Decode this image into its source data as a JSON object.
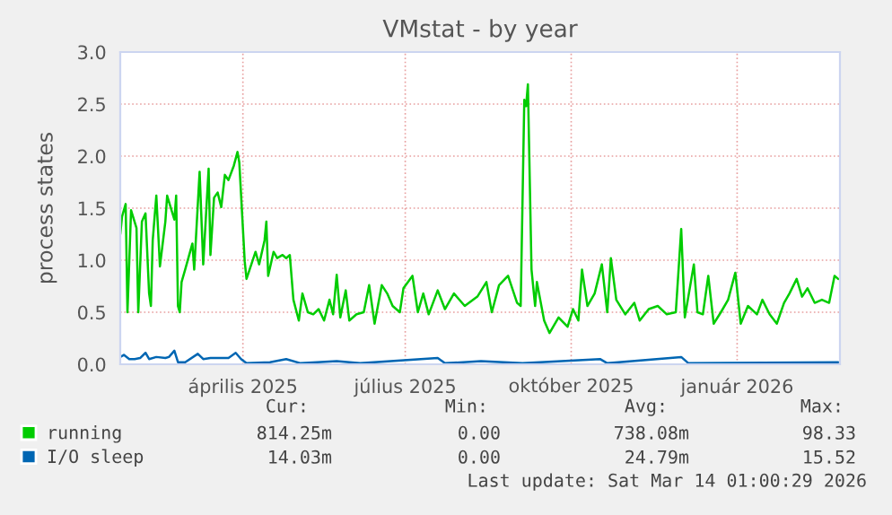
{
  "chart_data": {
    "type": "line",
    "title": "VMstat - by year",
    "ylabel": "process states",
    "xlim": [
      "2025-02-08",
      "2026-03-14"
    ],
    "ylim": [
      0,
      3.0
    ],
    "xticks": [
      {
        "value": "2025-04-17",
        "label": "április 2025"
      },
      {
        "value": "2025-07-16",
        "label": "július 2025"
      },
      {
        "value": "2025-10-16",
        "label": "október 2025"
      },
      {
        "value": "2026-01-16",
        "label": "január 2026"
      }
    ],
    "yticks": [
      {
        "value": 0,
        "label": "0.0"
      },
      {
        "value": 0.5,
        "label": "0.5"
      },
      {
        "value": 1.0,
        "label": "1.0"
      },
      {
        "value": 1.5,
        "label": "1.5"
      },
      {
        "value": 2.0,
        "label": "2.0"
      },
      {
        "value": 2.5,
        "label": "2.5"
      },
      {
        "value": 3.0,
        "label": "3.0"
      }
    ],
    "grid": true,
    "legend": "bottom",
    "series": [
      {
        "name": "running",
        "color": "#00cc00",
        "x": [
          "2025-02-08",
          "2025-02-09",
          "2025-02-11",
          "2025-02-12",
          "2025-02-14",
          "2025-02-17",
          "2025-02-18",
          "2025-02-20",
          "2025-02-22",
          "2025-02-24",
          "2025-02-25",
          "2025-02-26",
          "2025-02-28",
          "2025-03-02",
          "2025-03-05",
          "2025-03-06",
          "2025-03-10",
          "2025-03-11",
          "2025-03-12",
          "2025-03-13",
          "2025-03-14",
          "2025-03-16",
          "2025-03-20",
          "2025-03-21",
          "2025-03-24",
          "2025-03-26",
          "2025-03-29",
          "2025-03-30",
          "2025-04-01",
          "2025-04-03",
          "2025-04-05",
          "2025-04-07",
          "2025-04-09",
          "2025-04-12",
          "2025-04-14",
          "2025-04-15",
          "2025-04-18",
          "2025-04-19",
          "2025-04-24",
          "2025-04-26",
          "2025-04-29",
          "2025-04-30",
          "2025-05-01",
          "2025-05-04",
          "2025-05-06",
          "2025-05-09",
          "2025-05-11",
          "2025-05-13",
          "2025-05-15",
          "2025-05-18",
          "2025-05-20",
          "2025-05-23",
          "2025-05-26",
          "2025-05-29",
          "2025-06-01",
          "2025-06-04",
          "2025-06-06",
          "2025-06-08",
          "2025-06-10",
          "2025-06-13",
          "2025-06-15",
          "2025-06-19",
          "2025-06-23",
          "2025-06-26",
          "2025-06-29",
          "2025-07-03",
          "2025-07-06",
          "2025-07-09",
          "2025-07-13",
          "2025-07-15",
          "2025-07-20",
          "2025-07-23",
          "2025-07-26",
          "2025-07-29",
          "2025-08-03",
          "2025-08-07",
          "2025-08-12",
          "2025-08-18",
          "2025-08-25",
          "2025-08-30",
          "2025-09-02",
          "2025-09-06",
          "2025-09-11",
          "2025-09-16",
          "2025-09-18",
          "2025-09-20",
          "2025-09-21",
          "2025-09-22",
          "2025-09-24",
          "2025-09-26",
          "2025-09-27",
          "2025-10-01",
          "2025-10-04",
          "2025-10-09",
          "2025-10-14",
          "2025-10-17",
          "2025-10-20",
          "2025-10-22",
          "2025-10-25",
          "2025-10-29",
          "2025-11-02",
          "2025-11-05",
          "2025-11-07",
          "2025-11-10",
          "2025-11-15",
          "2025-11-20",
          "2025-11-23",
          "2025-11-28",
          "2025-12-03",
          "2025-12-08",
          "2025-12-13",
          "2025-12-16",
          "2025-12-18",
          "2025-12-23",
          "2025-12-25",
          "2025-12-28",
          "2025-12-31",
          "2026-01-03",
          "2026-01-07",
          "2026-01-11",
          "2026-01-15",
          "2026-01-18",
          "2026-01-22",
          "2026-01-27",
          "2026-01-30",
          "2026-02-03",
          "2026-02-07",
          "2026-02-11",
          "2026-02-14",
          "2026-02-18",
          "2026-02-21",
          "2026-02-24",
          "2026-02-28",
          "2026-03-04",
          "2026-03-08",
          "2026-03-11",
          "2026-03-13"
        ],
        "values": [
          1.25,
          1.42,
          1.54,
          0.5,
          1.48,
          1.31,
          0.5,
          1.37,
          1.45,
          0.68,
          0.56,
          1.19,
          1.62,
          0.94,
          1.37,
          1.62,
          1.39,
          1.62,
          0.56,
          0.5,
          0.79,
          0.91,
          1.16,
          0.91,
          1.85,
          0.96,
          1.88,
          1.05,
          1.6,
          1.65,
          1.51,
          1.82,
          1.77,
          1.91,
          2.04,
          1.94,
          0.99,
          0.82,
          1.08,
          0.96,
          1.19,
          1.37,
          0.85,
          1.08,
          1.02,
          1.05,
          1.02,
          1.05,
          0.62,
          0.42,
          0.68,
          0.5,
          0.48,
          0.53,
          0.42,
          0.62,
          0.48,
          0.86,
          0.45,
          0.71,
          0.42,
          0.48,
          0.5,
          0.76,
          0.39,
          0.76,
          0.68,
          0.56,
          0.5,
          0.73,
          0.85,
          0.5,
          0.68,
          0.48,
          0.71,
          0.53,
          0.68,
          0.56,
          0.65,
          0.79,
          0.5,
          0.76,
          0.85,
          0.59,
          0.56,
          2.54,
          2.48,
          2.69,
          0.91,
          0.56,
          0.79,
          0.42,
          0.3,
          0.45,
          0.36,
          0.53,
          0.42,
          0.91,
          0.56,
          0.68,
          0.96,
          0.5,
          1.02,
          0.62,
          0.48,
          0.59,
          0.42,
          0.53,
          0.56,
          0.48,
          0.5,
          1.3,
          0.45,
          0.96,
          0.5,
          0.48,
          0.85,
          0.39,
          0.5,
          0.62,
          0.88,
          0.39,
          0.56,
          0.48,
          0.62,
          0.48,
          0.39,
          0.59,
          0.68,
          0.82,
          0.65,
          0.73,
          0.59,
          0.62,
          0.59,
          0.85,
          0.82
        ]
      },
      {
        "name": "I/O sleep",
        "color": "#0066b3",
        "x": [
          "2025-02-08",
          "2025-02-10",
          "2025-02-13",
          "2025-02-16",
          "2025-02-19",
          "2025-02-22",
          "2025-02-24",
          "2025-02-28",
          "2025-03-05",
          "2025-03-07",
          "2025-03-10",
          "2025-03-12",
          "2025-03-16",
          "2025-03-23",
          "2025-03-26",
          "2025-03-30",
          "2025-04-04",
          "2025-04-09",
          "2025-04-13",
          "2025-04-16",
          "2025-04-19",
          "2025-05-02",
          "2025-05-11",
          "2025-05-19",
          "2025-06-08",
          "2025-06-21",
          "2025-08-03",
          "2025-08-07",
          "2025-08-27",
          "2025-09-19",
          "2025-11-01",
          "2025-11-05",
          "2025-12-16",
          "2025-12-20",
          "2026-03-13"
        ],
        "values": [
          0.07,
          0.09,
          0.05,
          0.05,
          0.06,
          0.11,
          0.05,
          0.07,
          0.06,
          0.07,
          0.13,
          0.02,
          0.02,
          0.1,
          0.05,
          0.06,
          0.06,
          0.06,
          0.11,
          0.05,
          0.01,
          0.02,
          0.05,
          0.01,
          0.03,
          0.01,
          0.06,
          0.01,
          0.03,
          0.01,
          0.05,
          0.01,
          0.07,
          0.01,
          0.02
        ]
      }
    ],
    "annotations": [
      "Cur:",
      "Min:",
      "Avg:",
      "Max:",
      "814.25m",
      "0.00",
      "738.08m",
      "98.33",
      "14.03m",
      "0.00",
      "24.79m",
      "15.52",
      "Last update: Sat Mar 14 01:00:29 2026"
    ]
  }
}
